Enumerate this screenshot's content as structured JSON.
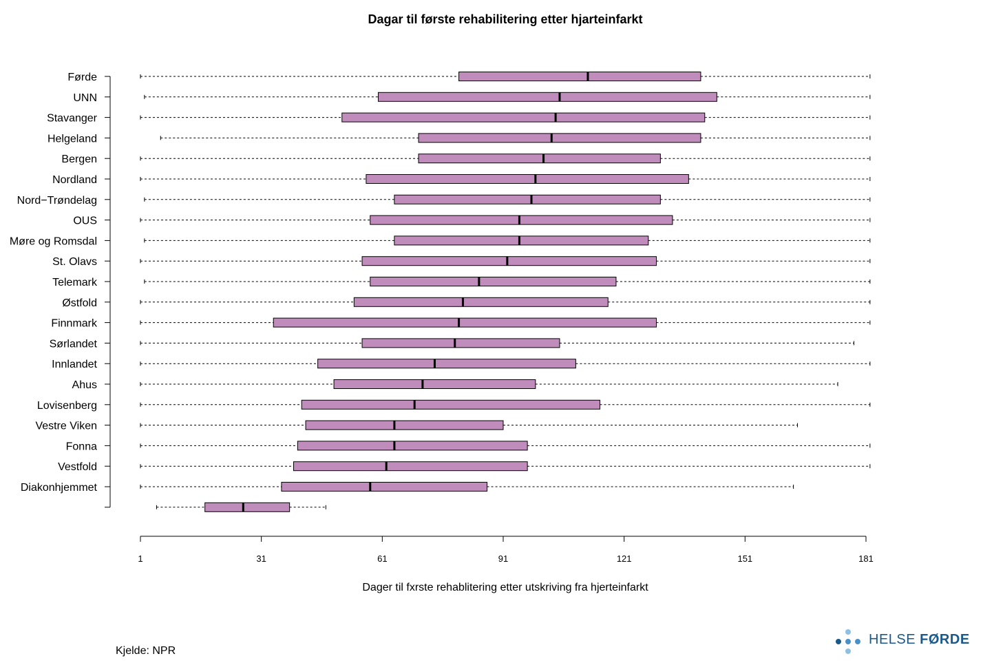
{
  "chart_data": {
    "type": "boxplot",
    "title": "Dagar til første rehabilitering  etter hjarteinfarkt",
    "xlabel": "Dager til fxrste rehablitering etter utskriving fra hjerteinfarkt",
    "ylabel": "",
    "xlim": [
      1,
      181
    ],
    "xticks": [
      "1",
      "31",
      "61",
      "91",
      "121",
      "151",
      "181"
    ],
    "grid": false,
    "box_color": "#c08cbc",
    "categories": [
      "Førde",
      "UNN",
      "Stavanger",
      "Helgeland",
      "Bergen",
      "Nordland",
      "Nord−Trøndelag",
      "OUS",
      "Møre og Romsdal",
      "St. Olavs",
      "Telemark",
      "Østfold",
      "Finnmark",
      "Sørlandet",
      "Innlandet",
      "Ahus",
      "Lovisenberg",
      "Vestre Viken",
      "Fonna",
      "Vestfold",
      "Diakonhjemmet",
      ""
    ],
    "boxes": [
      {
        "min": 1,
        "q1": 80,
        "median": 112,
        "q3": 140,
        "max": 182
      },
      {
        "min": 2,
        "q1": 60,
        "median": 105,
        "q3": 144,
        "max": 182
      },
      {
        "min": 1,
        "q1": 51,
        "median": 104,
        "q3": 141,
        "max": 182
      },
      {
        "min": 6,
        "q1": 70,
        "median": 103,
        "q3": 140,
        "max": 182
      },
      {
        "min": 1,
        "q1": 70,
        "median": 101,
        "q3": 130,
        "max": 182
      },
      {
        "min": 1,
        "q1": 57,
        "median": 99,
        "q3": 137,
        "max": 182
      },
      {
        "min": 2,
        "q1": 64,
        "median": 98,
        "q3": 130,
        "max": 182
      },
      {
        "min": 1,
        "q1": 58,
        "median": 95,
        "q3": 133,
        "max": 182
      },
      {
        "min": 2,
        "q1": 64,
        "median": 95,
        "q3": 127,
        "max": 182
      },
      {
        "min": 1,
        "q1": 56,
        "median": 92,
        "q3": 129,
        "max": 182
      },
      {
        "min": 2,
        "q1": 58,
        "median": 85,
        "q3": 119,
        "max": 182
      },
      {
        "min": 1,
        "q1": 54,
        "median": 81,
        "q3": 117,
        "max": 182
      },
      {
        "min": 1,
        "q1": 34,
        "median": 80,
        "q3": 129,
        "max": 182
      },
      {
        "min": 1,
        "q1": 56,
        "median": 79,
        "q3": 105,
        "max": 178
      },
      {
        "min": 1,
        "q1": 45,
        "median": 74,
        "q3": 109,
        "max": 182
      },
      {
        "min": 1,
        "q1": 49,
        "median": 71,
        "q3": 99,
        "max": 174
      },
      {
        "min": 1,
        "q1": 41,
        "median": 69,
        "q3": 115,
        "max": 182
      },
      {
        "min": 1,
        "q1": 42,
        "median": 64,
        "q3": 91,
        "max": 164
      },
      {
        "min": 1,
        "q1": 40,
        "median": 64,
        "q3": 97,
        "max": 182
      },
      {
        "min": 1,
        "q1": 39,
        "median": 62,
        "q3": 97,
        "max": 182
      },
      {
        "min": 1,
        "q1": 36,
        "median": 58,
        "q3": 87,
        "max": 163
      },
      {
        "min": 5,
        "q1": 17,
        "median": 26.5,
        "q3": 38,
        "max": 47
      }
    ]
  },
  "footer": {
    "source": "Kjelde: NPR",
    "logo_word1": "HELSE",
    "logo_word2": "FØRDE",
    "logo_dot_colors": [
      "#1a5a8a",
      "#4a90c8",
      "#8ec0e4"
    ]
  }
}
